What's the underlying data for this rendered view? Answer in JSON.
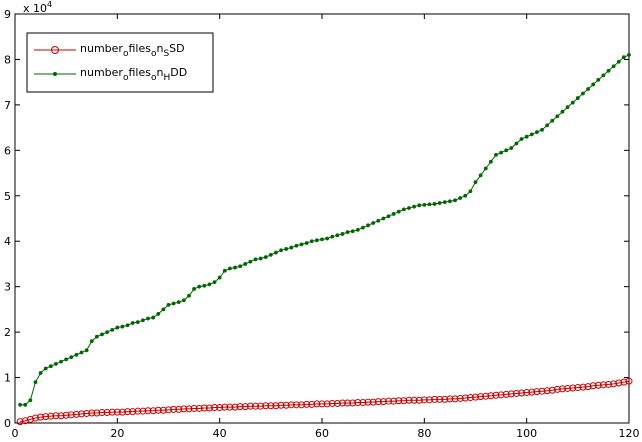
{
  "chart_data": {
    "type": "line",
    "title": "",
    "xlabel": "",
    "ylabel": "",
    "xlim": [
      0,
      120
    ],
    "ylim": [
      0,
      90000
    ],
    "xticks": [
      0,
      20,
      40,
      60,
      80,
      100,
      120
    ],
    "xtick_labels": [
      "0",
      "20",
      "40",
      "60",
      "80",
      "100",
      "120"
    ],
    "yticks": [
      0,
      10000,
      20000,
      30000,
      40000,
      50000,
      60000,
      70000,
      80000,
      90000
    ],
    "ytick_labels": [
      "0",
      "1",
      "2",
      "3",
      "4",
      "5",
      "6",
      "7",
      "8",
      "9"
    ],
    "y_scale_text": {
      "base": "x 10",
      "exponent": "4"
    },
    "grid": false,
    "legend_position": "top-left",
    "legend": [
      {
        "parts": [
          {
            "t": "number",
            "sub": false
          },
          {
            "t": "o",
            "sub": true
          },
          {
            "t": "f",
            "sub": false
          },
          {
            "t": "iles",
            "sub": false
          },
          {
            "t": "o",
            "sub": true
          },
          {
            "t": "n",
            "sub": false
          },
          {
            "t": "S",
            "sub": true
          },
          {
            "t": "SD",
            "sub": false
          }
        ],
        "color": "#cc0000",
        "marker": "circle"
      },
      {
        "parts": [
          {
            "t": "number",
            "sub": false
          },
          {
            "t": "o",
            "sub": true
          },
          {
            "t": "f",
            "sub": false
          },
          {
            "t": "iles",
            "sub": false
          },
          {
            "t": "o",
            "sub": true
          },
          {
            "t": "n",
            "sub": false
          },
          {
            "t": "H",
            "sub": true
          },
          {
            "t": "DD",
            "sub": false
          }
        ],
        "color": "#006600",
        "marker": "dot"
      }
    ],
    "series": [
      {
        "marker": "circle",
        "color": "#cc0000",
        "x_start": 1,
        "x_step": 1,
        "values": [
          300,
          500,
          800,
          1100,
          1300,
          1400,
          1500,
          1600,
          1600,
          1700,
          1800,
          1900,
          2000,
          2100,
          2200,
          2200,
          2300,
          2300,
          2400,
          2400,
          2400,
          2500,
          2500,
          2600,
          2600,
          2700,
          2700,
          2800,
          2800,
          2900,
          3000,
          3000,
          3100,
          3100,
          3200,
          3200,
          3300,
          3300,
          3400,
          3400,
          3500,
          3500,
          3500,
          3600,
          3600,
          3700,
          3700,
          3700,
          3800,
          3800,
          3800,
          3900,
          3900,
          4000,
          4000,
          4000,
          4100,
          4100,
          4200,
          4200,
          4200,
          4300,
          4300,
          4400,
          4400,
          4400,
          4500,
          4500,
          4600,
          4600,
          4700,
          4700,
          4800,
          4800,
          4900,
          4900,
          5000,
          5000,
          5000,
          5100,
          5100,
          5200,
          5200,
          5200,
          5300,
          5300,
          5400,
          5500,
          5600,
          5700,
          5800,
          5900,
          6000,
          6100,
          6200,
          6300,
          6400,
          6500,
          6600,
          6700,
          6800,
          6900,
          7000,
          7100,
          7200,
          7400,
          7500,
          7600,
          7700,
          7800,
          7900,
          8000,
          8200,
          8300,
          8400,
          8500,
          8600,
          8800,
          9000,
          9200
        ]
      },
      {
        "marker": "dot",
        "color": "#006600",
        "x_start": 1,
        "x_step": 1,
        "values": [
          4000,
          4000,
          5000,
          9000,
          11000,
          12000,
          12500,
          13000,
          13500,
          14000,
          14500,
          15000,
          15500,
          16000,
          18000,
          19000,
          19500,
          20000,
          20500,
          21000,
          21200,
          21500,
          22000,
          22200,
          22600,
          23000,
          23200,
          24000,
          25000,
          26000,
          26300,
          26600,
          27000,
          28000,
          29500,
          30000,
          30200,
          30500,
          31000,
          32000,
          33500,
          34000,
          34200,
          34500,
          35000,
          35500,
          36000,
          36200,
          36500,
          37000,
          37500,
          38000,
          38300,
          38600,
          39000,
          39300,
          39600,
          40000,
          40200,
          40400,
          40600,
          41000,
          41300,
          41600,
          42000,
          42200,
          42500,
          43000,
          43500,
          44000,
          44500,
          45000,
          45500,
          46000,
          46500,
          47000,
          47300,
          47600,
          47900,
          48000,
          48100,
          48200,
          48400,
          48600,
          48800,
          49000,
          49500,
          50000,
          51000,
          53000,
          54500,
          56000,
          57500,
          59000,
          59500,
          60000,
          60500,
          61500,
          62500,
          63000,
          63500,
          64000,
          64500,
          65500,
          66500,
          67500,
          68500,
          69500,
          70500,
          71500,
          72500,
          73500,
          74500,
          75500,
          76500,
          77500,
          78500,
          79500,
          80500,
          81000
        ]
      }
    ]
  }
}
